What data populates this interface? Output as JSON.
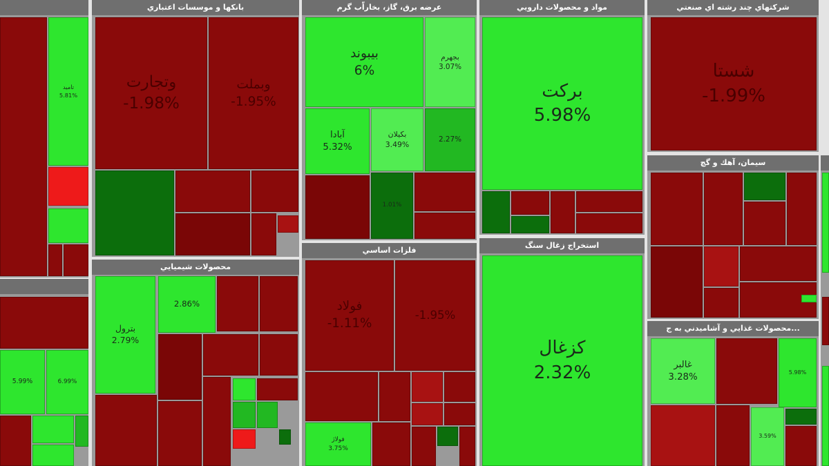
{
  "sectors": [
    {
      "tiles": [
        {
          "label": "تامید",
          "change": "5.81%"
        }
      ]
    },
    {
      "title": "بانکها و موسسات اعتباري",
      "tiles": [
        {
          "label": "وتجارت",
          "change": "-1.98%"
        },
        {
          "label": "وبملت",
          "change": "-1.95%"
        }
      ]
    },
    {
      "title": "عرضه برق، گاز، بخاراّب گرم",
      "tiles": [
        {
          "label": "بیبوند",
          "change": "6%"
        },
        {
          "label": "بجهرم",
          "change": "3.07%"
        },
        {
          "label": "آبادا",
          "change": "5.32%"
        },
        {
          "label": "بکیلان",
          "change": "3.49%"
        },
        {
          "change": "2.27%"
        },
        {
          "change": "1.01%"
        }
      ]
    },
    {
      "title": "مواد و محصولات دارويي",
      "tiles": [
        {
          "label": "برکت",
          "change": "5.98%"
        }
      ]
    },
    {
      "title": "شرکتهاي چند رشته اي صنعتي",
      "tiles": [
        {
          "label": "شستا",
          "change": "-1.99%"
        }
      ]
    },
    {
      "title": "سيمان، آهك و گچ"
    },
    {
      "title": "...محصولات غذايي و آشاميدني به ج",
      "tiles": [
        {
          "label": "غالبر",
          "change": "3.28%"
        },
        {
          "change": "5.98%"
        },
        {
          "change": "3.59%"
        }
      ]
    },
    {
      "title": "استخراج زغال سنگ",
      "tiles": [
        {
          "label": "کزغال",
          "change": "2.32%"
        }
      ]
    },
    {
      "title": "فلزات اساسي",
      "tiles": [
        {
          "label": "فولاد",
          "change": "-1.11%"
        },
        {
          "change": "-1.95%"
        },
        {
          "label": "فولاژ",
          "change": "3.75%"
        }
      ]
    },
    {
      "title": "محصولات شيميايي",
      "tiles": [
        {
          "label": "بترول",
          "change": "2.79%"
        },
        {
          "change": "2.86%"
        }
      ]
    },
    {
      "tiles": [
        {
          "change": "5.99%"
        },
        {
          "change": "6.99%"
        }
      ]
    },
    {}
  ]
}
